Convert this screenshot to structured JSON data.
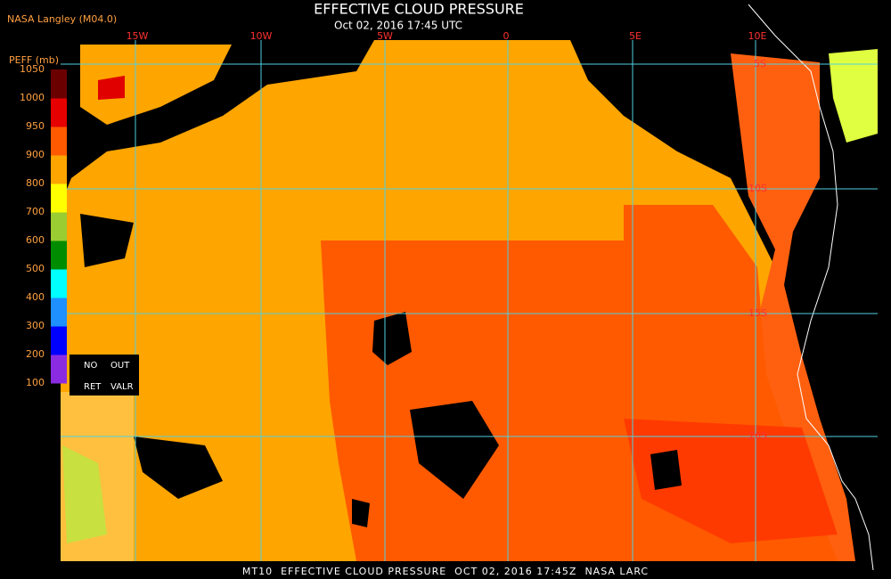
{
  "header": {
    "source": "NASA Langley (M04.0)",
    "title": "EFFECTIVE CLOUD PRESSURE",
    "subtitle": "Oct 02, 2016 17:45 UTC"
  },
  "map": {
    "lon_labels": [
      "15W",
      "10W",
      "5W",
      "0",
      "5E",
      "10E"
    ],
    "lat_labels": [
      "5S",
      "10S",
      "15S",
      "20S"
    ]
  },
  "legend": {
    "label": "PEFF (mb)",
    "ticks": [
      1050,
      1000,
      950,
      900,
      800,
      700,
      600,
      500,
      400,
      300,
      200,
      100
    ],
    "colors": [
      "#6b0000",
      "#e60000",
      "#ff5a00",
      "#ffa500",
      "#ffff00",
      "#9acd32",
      "#008c00",
      "#00ffff",
      "#1e90ff",
      "#0000ff",
      "#8a2be2"
    ],
    "no_ret": [
      "NO",
      "RET"
    ],
    "out_valr": [
      "OUT",
      "VALR"
    ]
  },
  "footer": "MT10  EFFECTIVE CLOUD PRESSURE  OCT 02, 2016 17:45Z  NASA LARC"
}
